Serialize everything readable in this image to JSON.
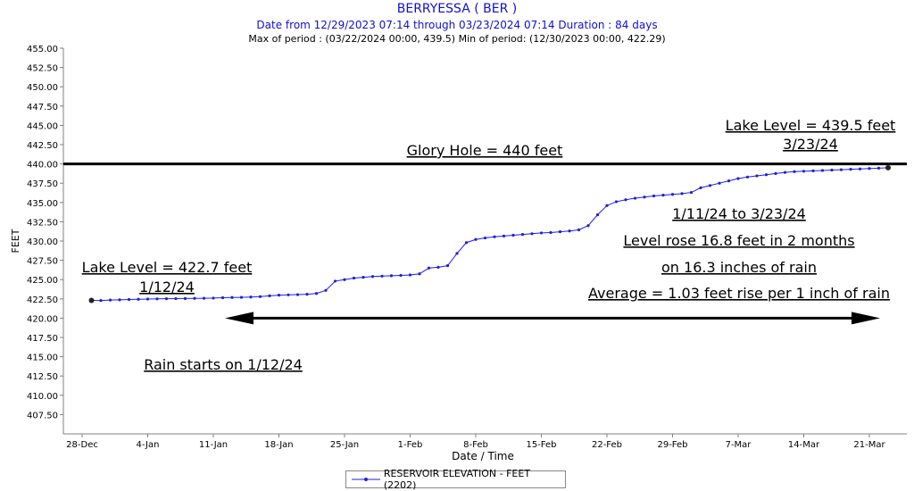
{
  "header": {
    "title": "BERRYESSA ( BER )",
    "subtitle": "Date from 12/29/2023 07:14 through 03/23/2024 07:14 Duration : 84 days",
    "stats": "Max of period : (03/22/2024 00:00, 439.5)  Min of period: (12/30/2023 00:00,  422.29)"
  },
  "colors": {
    "series": "#1f1fe0",
    "axis": "#808080",
    "text": "#000000",
    "title": "#1010d0"
  },
  "chart_data": {
    "type": "line",
    "xlabel": "Date / Time",
    "ylabel": "FEET",
    "ylim": [
      405.0,
      455.0
    ],
    "xlim": [
      "12/26/2023",
      "03/25/2024"
    ],
    "grid": false,
    "legend": "bottom",
    "y_ticks": [
      "455.00",
      "452.50",
      "450.00",
      "447.50",
      "445.00",
      "442.50",
      "440.00",
      "437.50",
      "435.00",
      "432.50",
      "430.00",
      "427.50",
      "425.00",
      "422.50",
      "420.00",
      "417.50",
      "415.00",
      "412.50",
      "410.00",
      "407.50"
    ],
    "x_ticks": [
      {
        "label": "28-Dec",
        "date": "12/28/2023"
      },
      {
        "label": "4-Jan",
        "date": "01/04/2024"
      },
      {
        "label": "11-Jan",
        "date": "01/11/2024"
      },
      {
        "label": "18-Jan",
        "date": "01/18/2024"
      },
      {
        "label": "25-Jan",
        "date": "01/25/2024"
      },
      {
        "label": "1-Feb",
        "date": "02/01/2024"
      },
      {
        "label": "8-Feb",
        "date": "02/08/2024"
      },
      {
        "label": "15-Feb",
        "date": "02/15/2024"
      },
      {
        "label": "22-Feb",
        "date": "02/22/2024"
      },
      {
        "label": "29-Feb",
        "date": "02/29/2024"
      },
      {
        "label": "7-Mar",
        "date": "03/07/2024"
      },
      {
        "label": "14-Mar",
        "date": "03/14/2024"
      },
      {
        "label": "21-Mar",
        "date": "03/21/2024"
      }
    ],
    "series": [
      {
        "name": "RESERVOIR ELEVATION - FEET (2202)",
        "x": [
          "12/29/2023",
          "12/30/2023",
          "12/31/2023",
          "01/01/2024",
          "01/02/2024",
          "01/03/2024",
          "01/04/2024",
          "01/05/2024",
          "01/06/2024",
          "01/07/2024",
          "01/08/2024",
          "01/09/2024",
          "01/10/2024",
          "01/11/2024",
          "01/12/2024",
          "01/13/2024",
          "01/14/2024",
          "01/15/2024",
          "01/16/2024",
          "01/17/2024",
          "01/18/2024",
          "01/19/2024",
          "01/20/2024",
          "01/21/2024",
          "01/22/2024",
          "01/23/2024",
          "01/24/2024",
          "01/25/2024",
          "01/26/2024",
          "01/27/2024",
          "01/28/2024",
          "01/29/2024",
          "01/30/2024",
          "01/31/2024",
          "02/01/2024",
          "02/02/2024",
          "02/03/2024",
          "02/04/2024",
          "02/05/2024",
          "02/06/2024",
          "02/07/2024",
          "02/08/2024",
          "02/09/2024",
          "02/10/2024",
          "02/11/2024",
          "02/12/2024",
          "02/13/2024",
          "02/14/2024",
          "02/15/2024",
          "02/16/2024",
          "02/17/2024",
          "02/18/2024",
          "02/19/2024",
          "02/20/2024",
          "02/21/2024",
          "02/22/2024",
          "02/23/2024",
          "02/24/2024",
          "02/25/2024",
          "02/26/2024",
          "02/27/2024",
          "02/28/2024",
          "02/29/2024",
          "03/01/2024",
          "03/02/2024",
          "03/03/2024",
          "03/04/2024",
          "03/05/2024",
          "03/06/2024",
          "03/07/2024",
          "03/08/2024",
          "03/09/2024",
          "03/10/2024",
          "03/11/2024",
          "03/12/2024",
          "03/13/2024",
          "03/14/2024",
          "03/15/2024",
          "03/16/2024",
          "03/17/2024",
          "03/18/2024",
          "03/19/2024",
          "03/20/2024",
          "03/21/2024",
          "03/22/2024",
          "03/23/2024"
        ],
        "values": [
          422.3,
          422.29,
          422.35,
          422.38,
          422.42,
          422.45,
          422.48,
          422.5,
          422.52,
          422.53,
          422.55,
          422.57,
          422.58,
          422.6,
          422.65,
          422.68,
          422.7,
          422.74,
          422.8,
          422.9,
          422.98,
          423.02,
          423.05,
          423.1,
          423.2,
          423.6,
          424.8,
          425.0,
          425.2,
          425.3,
          425.4,
          425.45,
          425.5,
          425.55,
          425.6,
          425.75,
          426.5,
          426.6,
          426.8,
          428.4,
          429.8,
          430.2,
          430.4,
          430.55,
          430.65,
          430.75,
          430.85,
          430.95,
          431.05,
          431.1,
          431.2,
          431.3,
          431.45,
          432.0,
          433.4,
          434.6,
          435.1,
          435.35,
          435.55,
          435.7,
          435.85,
          435.95,
          436.05,
          436.15,
          436.3,
          436.9,
          437.2,
          437.5,
          437.8,
          438.1,
          438.3,
          438.45,
          438.6,
          438.75,
          438.9,
          439.0,
          439.05,
          439.1,
          439.15,
          439.2,
          439.25,
          439.3,
          439.35,
          439.4,
          439.45,
          439.5
        ]
      }
    ],
    "reference_line": {
      "value": 440.0,
      "label": "Glory Hole = 440 feet"
    },
    "annotations": [
      {
        "id": "lake_end",
        "lines": [
          "Lake Level = 439.5 feet",
          "3/23/24"
        ]
      },
      {
        "id": "lake_start",
        "lines": [
          "Lake Level = 422.7 feet",
          "1/12/24"
        ]
      },
      {
        "id": "range",
        "lines": [
          "1/11/24 to 3/23/24"
        ]
      },
      {
        "id": "rose",
        "lines": [
          "Level rose 16.8 feet in 2 months"
        ]
      },
      {
        "id": "rain_in",
        "lines": [
          "on 16.3 inches of rain"
        ]
      },
      {
        "id": "average",
        "lines": [
          "Average = 1.03 feet rise per 1 inch of rain"
        ]
      },
      {
        "id": "rain_start",
        "lines": [
          "Rain starts on 1/12/24"
        ]
      }
    ]
  }
}
